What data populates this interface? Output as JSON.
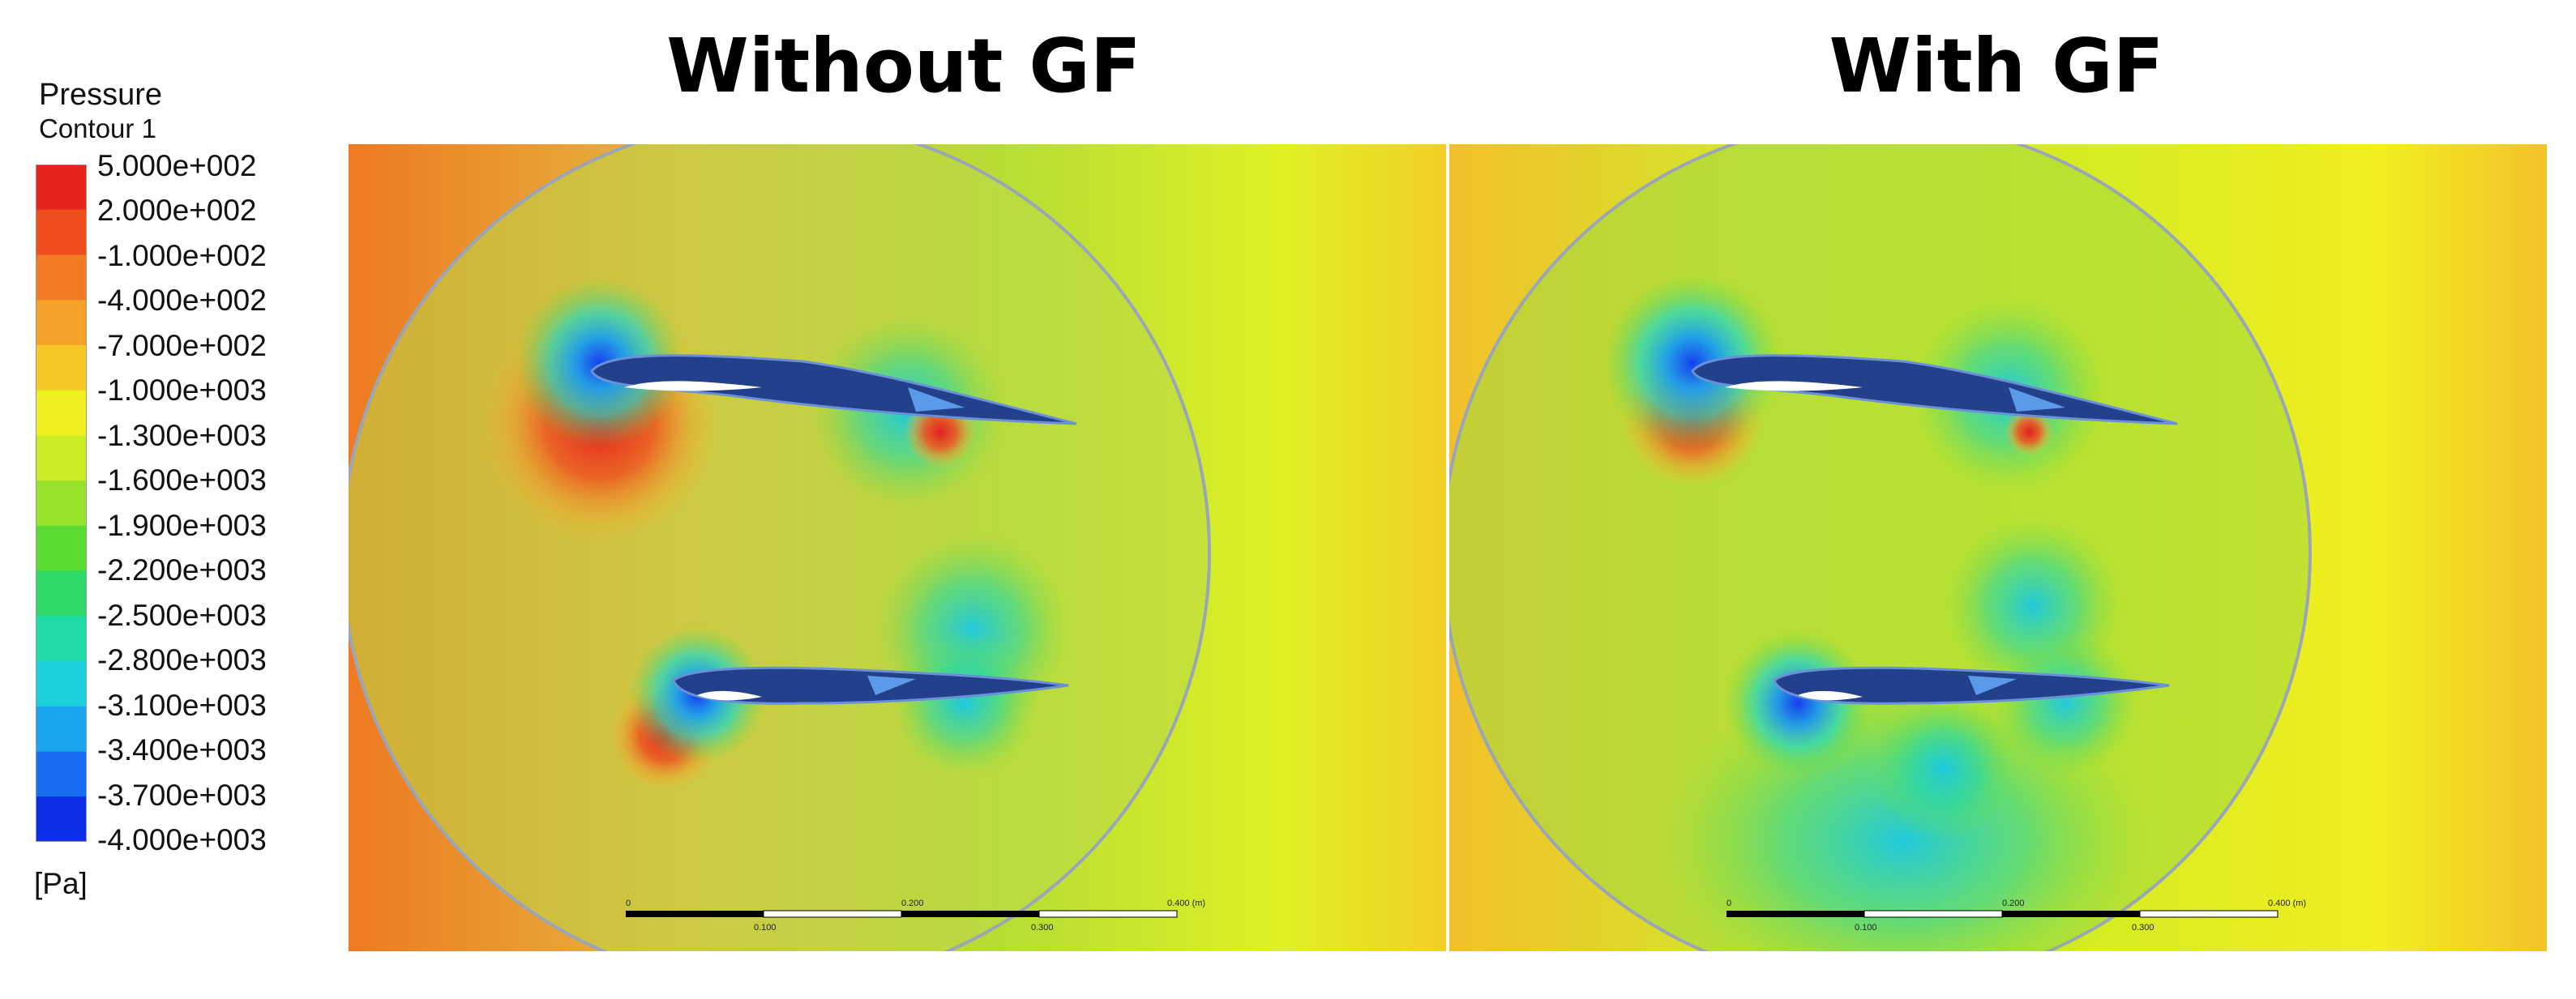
{
  "legend": {
    "title": "Pressure",
    "subtitle": "Contour 1",
    "labels": [
      "5.000e+002",
      "2.000e+002",
      "-1.000e+002",
      "-4.000e+002",
      "-7.000e+002",
      "-1.000e+003",
      "-1.300e+003",
      "-1.600e+003",
      "-1.900e+003",
      "-2.200e+003",
      "-2.500e+003",
      "-2.800e+003",
      "-3.100e+003",
      "-3.400e+003",
      "-3.700e+003",
      "-4.000e+003"
    ],
    "unit": "[Pa]"
  },
  "panels": [
    {
      "title": "Without GF",
      "scale_top": [
        "0",
        "0.200",
        "0.400 (m)"
      ],
      "scale_bottom": [
        "0.100",
        "0.300"
      ]
    },
    {
      "title": "With GF",
      "scale_top": [
        "0",
        "0.200",
        "0.400 (m)"
      ],
      "scale_bottom": [
        "0.100",
        "0.300"
      ]
    }
  ]
}
